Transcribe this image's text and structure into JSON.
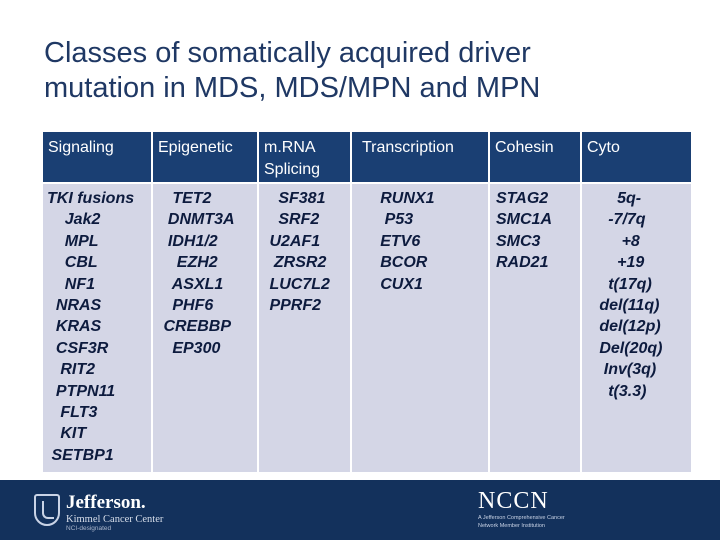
{
  "title": {
    "line1": "Classes of somatically acquired driver",
    "line2": "mutation in MDS, MDS/MPN and MPN"
  },
  "table": {
    "headers": [
      [
        "Signaling"
      ],
      [
        "Epigenetic"
      ],
      [
        "m.RNA",
        "Splicing"
      ],
      [
        "Transcription"
      ],
      [
        "Cohesin"
      ],
      [
        "Cyto"
      ]
    ],
    "columns": [
      [
        "TKI fusions",
        "    Jak2",
        "    MPL",
        "    CBL",
        "    NF1",
        "  NRAS",
        "  KRAS",
        "  CSF3R",
        "   RIT2",
        "  PTPN11",
        "   FLT3",
        "   KIT",
        " SETBP1"
      ],
      [
        "   TET2",
        "  DNMT3A",
        "  IDH1/2",
        "    EZH2",
        "   ASXL1",
        "   PHF6",
        " CREBBP",
        "   EP300"
      ],
      [
        "   SF381",
        "   SRF2",
        " U2AF1",
        "  ZRSR2",
        " LUC7L2",
        " PPRF2"
      ],
      [
        "     RUNX1",
        "      P53",
        "     ETV6",
        "     BCOR",
        "     CUX1"
      ],
      [
        "STAG2",
        "SMC1A",
        "SMC3",
        "RAD21"
      ],
      [
        "       5q-",
        "     -7/7q",
        "        +8",
        "       +19",
        "     t(17q)",
        "   del(11q)",
        "   del(12p)",
        "   Del(20q)",
        "    Inv(3q)",
        "     t(3.3)"
      ]
    ]
  },
  "footer": {
    "logo_name": "Jefferson.",
    "logo_sub": "Kimmel Cancer Center",
    "logo_sub2": "NCI-designated",
    "nccn_mark": "NCCN",
    "nccn_sub1": "A Jefferson Comprehensive Cancer",
    "nccn_sub2": "Network Member Institution",
    "bg_color": "#13315c"
  }
}
